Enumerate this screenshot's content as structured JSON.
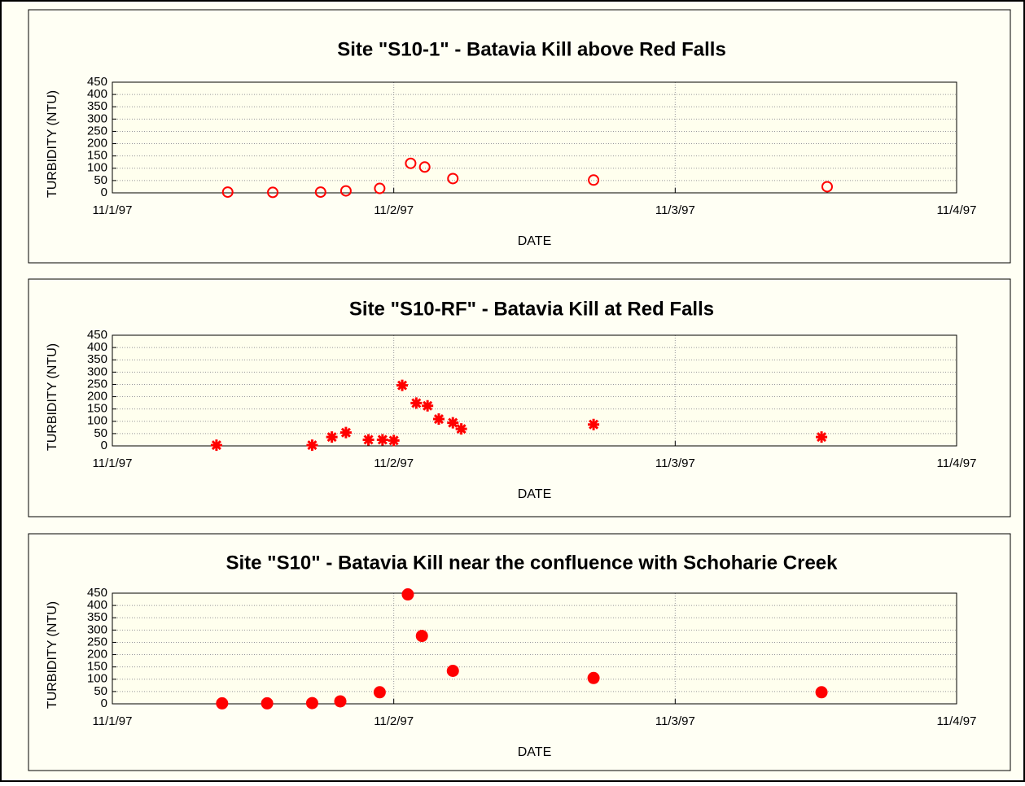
{
  "chart_data": [
    {
      "type": "scatter",
      "title": "Site \"S10-1\" - Batavia Kill above Red Falls",
      "x_label": "DATE",
      "y_label": "TURBIDITY (NTU)",
      "x": [
        0.41,
        0.57,
        0.74,
        0.83,
        0.95,
        1.06,
        1.11,
        1.21,
        1.71,
        2.54
      ],
      "values": [
        3,
        2,
        3,
        8,
        18,
        120,
        105,
        58,
        52,
        25
      ],
      "color": "#ff0000",
      "marker": "open-circle",
      "xlim": [
        0,
        3
      ],
      "xticks": [
        {
          "value": 0,
          "label": "11/1/97"
        },
        {
          "value": 1,
          "label": "11/2/97"
        },
        {
          "value": 2,
          "label": "11/3/97"
        },
        {
          "value": 3,
          "label": "11/4/97"
        }
      ],
      "ylim": [
        0,
        450
      ],
      "yticks": [
        0,
        50,
        100,
        150,
        200,
        250,
        300,
        350,
        400,
        450
      ],
      "grid": true
    },
    {
      "type": "scatter",
      "title": "Site \"S10-RF\" - Batavia Kill at Red Falls",
      "x_label": "DATE",
      "y_label": "TURBIDITY (NTU)",
      "x": [
        0.37,
        0.71,
        0.78,
        0.83,
        0.91,
        0.96,
        1.0,
        1.03,
        1.08,
        1.12,
        1.16,
        1.21,
        1.24,
        1.71,
        2.52
      ],
      "values": [
        3,
        3,
        36,
        54,
        25,
        25,
        22,
        246,
        174,
        163,
        109,
        94,
        69,
        87,
        36
      ],
      "color": "#ff0000",
      "marker": "asterisk",
      "xlim": [
        0,
        3
      ],
      "xticks": [
        {
          "value": 0,
          "label": "11/1/97"
        },
        {
          "value": 1,
          "label": "11/2/97"
        },
        {
          "value": 2,
          "label": "11/3/97"
        },
        {
          "value": 3,
          "label": "11/4/97"
        }
      ],
      "ylim": [
        0,
        450
      ],
      "yticks": [
        0,
        50,
        100,
        150,
        200,
        250,
        300,
        350,
        400,
        450
      ],
      "grid": true
    },
    {
      "type": "scatter",
      "title": "Site \"S10\" - Batavia Kill near the confluence with Schoharie Creek",
      "x_label": "DATE",
      "y_label": "TURBIDITY (NTU)",
      "x": [
        0.39,
        0.55,
        0.71,
        0.81,
        0.95,
        1.05,
        1.1,
        1.21,
        1.71,
        2.52
      ],
      "values": [
        2,
        2,
        3,
        10,
        47,
        445,
        276,
        134,
        105,
        47
      ],
      "color": "#ff0000",
      "marker": "filled-circle",
      "xlim": [
        0,
        3
      ],
      "xticks": [
        {
          "value": 0,
          "label": "11/1/97"
        },
        {
          "value": 1,
          "label": "11/2/97"
        },
        {
          "value": 2,
          "label": "11/3/97"
        },
        {
          "value": 3,
          "label": "11/4/97"
        }
      ],
      "ylim": [
        0,
        450
      ],
      "yticks": [
        0,
        50,
        100,
        150,
        200,
        250,
        300,
        350,
        400,
        450
      ],
      "grid": true
    }
  ]
}
